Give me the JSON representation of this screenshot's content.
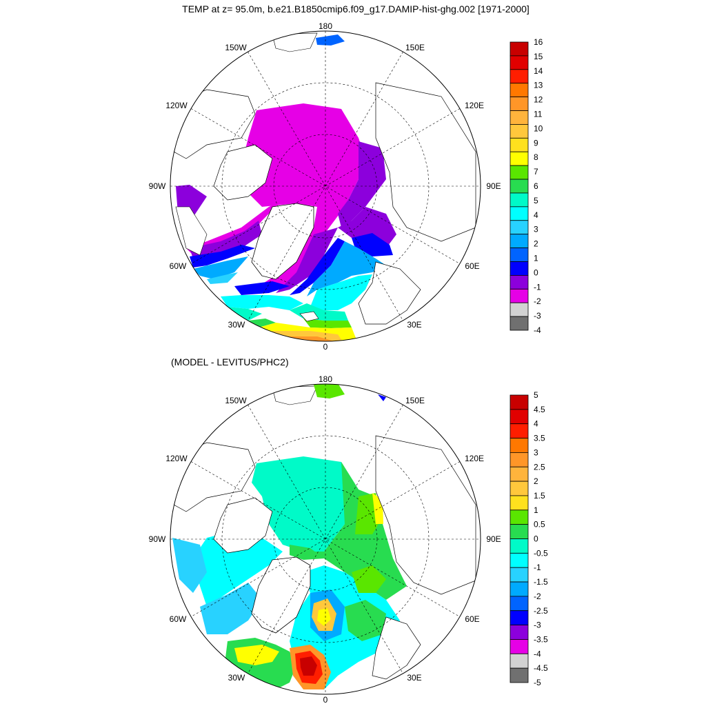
{
  "panels": [
    {
      "id": "temp",
      "title": "TEMP at z=  95.0m, b.e21.B1850cmip6.f09_g17.DAMIP-hist-ghg.002 [1971-2000]",
      "longitude_labels": [
        "180",
        "150E",
        "120E",
        "90E",
        "60E",
        "30E",
        "0",
        "30W",
        "60W",
        "90W",
        "120W",
        "150W"
      ],
      "colorbar": {
        "labels": [
          "16",
          "15",
          "14",
          "13",
          "12",
          "11",
          "10",
          "9",
          "8",
          "7",
          "6",
          "5",
          "4",
          "3",
          "2",
          "1",
          "0",
          "-1",
          "-2",
          "-3",
          "-4"
        ],
        "colors": [
          "#c80000",
          "#e10000",
          "#ff1e00",
          "#ff7800",
          "#ff9628",
          "#ffb43c",
          "#ffc83c",
          "#ffe11e",
          "#ffff00",
          "#5ae600",
          "#28dc50",
          "#00fac8",
          "#00ffff",
          "#28d2ff",
          "#00aaff",
          "#0064ff",
          "#0000ff",
          "#8c00dc",
          "#e600e6",
          "#d2d2d2",
          "#707070"
        ]
      }
    },
    {
      "id": "diff",
      "title": "(MODEL - LEVITUS/PHC2)",
      "longitude_labels": [
        "180",
        "150E",
        "120E",
        "90E",
        "60E",
        "30E",
        "0",
        "30W",
        "60W",
        "90W",
        "120W",
        "150W"
      ],
      "colorbar": {
        "labels": [
          "5",
          "4.5",
          "4",
          "3.5",
          "3",
          "2.5",
          "2",
          "1.5",
          "1",
          "0.5",
          "0",
          "-0.5",
          "-1",
          "-1.5",
          "-2",
          "-2.5",
          "-3",
          "-3.5",
          "-4",
          "-4.5",
          "-5"
        ],
        "colors": [
          "#c80000",
          "#e10000",
          "#ff1e00",
          "#ff7800",
          "#ff9628",
          "#ffb43c",
          "#ffc83c",
          "#ffe11e",
          "#5ae600",
          "#28dc50",
          "#00fac8",
          "#00ffff",
          "#28d2ff",
          "#00aaff",
          "#0064ff",
          "#0000ff",
          "#8c00dc",
          "#e600e6",
          "#d2d2d2",
          "#707070"
        ]
      }
    }
  ],
  "colors": {
    "magenta": "#e600e6",
    "purple": "#8c00dc",
    "blue": "#0000ff",
    "lightblue": "#00aaff",
    "skyblue": "#28d2ff",
    "cyan": "#00ffff",
    "aquagreen": "#00fac8",
    "green": "#28dc50",
    "lime": "#5ae600",
    "yellow": "#ffff00",
    "gold": "#ffc83c",
    "orange": "#ff9628",
    "red": "#c80000",
    "land": "#ffffff"
  }
}
